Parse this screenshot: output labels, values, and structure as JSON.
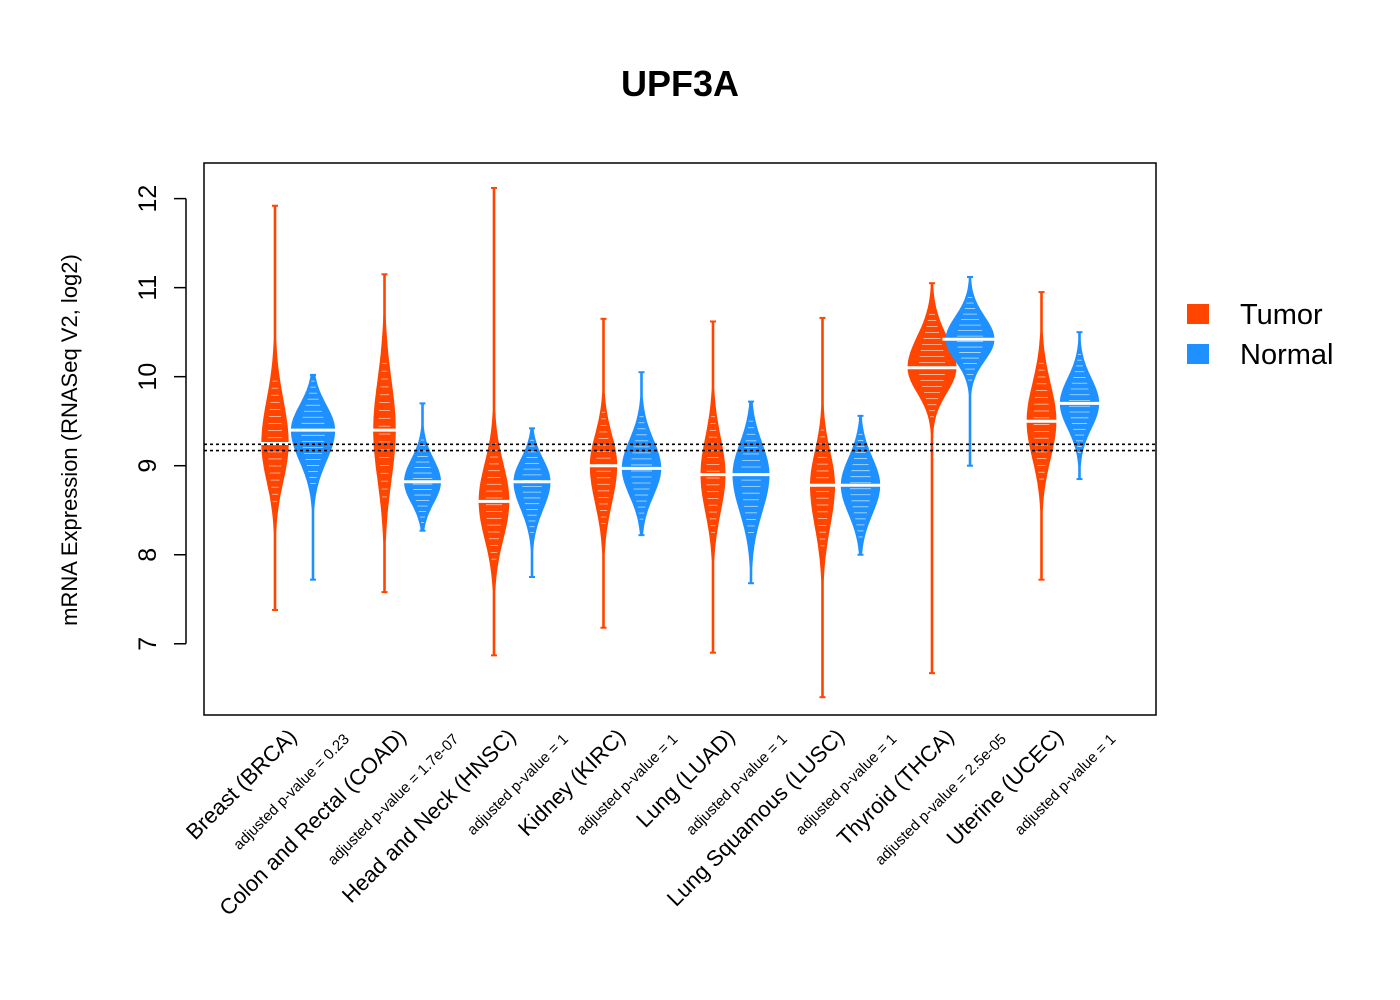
{
  "chart_data": {
    "type": "violin",
    "title": "UPF3A",
    "ylabel": "mRNA Expression (RNASeq V2, log2)",
    "xlabel": "",
    "ylim": [
      6.2,
      12.4
    ],
    "yticks": [
      "7",
      "8",
      "9",
      "10",
      "11",
      "12"
    ],
    "reference_lines": [
      9.17,
      9.24
    ],
    "legend": {
      "position": "right",
      "entries": [
        {
          "name": "Tumor",
          "color": "#ff4500"
        },
        {
          "name": "Normal",
          "color": "#1e90ff"
        }
      ]
    },
    "categories": [
      {
        "label": "Breast (BRCA)",
        "pvalue": "adjusted p-value = 0.23",
        "tumor": {
          "min": 7.38,
          "max": 11.92,
          "median": 9.25,
          "q1": 8.95,
          "q3": 9.6,
          "width": 0.55
        },
        "normal": {
          "min": 7.72,
          "max": 10.02,
          "median": 9.4,
          "q1": 9.15,
          "q3": 9.6,
          "width": 0.9
        }
      },
      {
        "label": "Colon and Rectal (COAD)",
        "pvalue": "adjusted p-value = 1.7e-07",
        "tumor": {
          "min": 7.58,
          "max": 11.15,
          "median": 9.4,
          "q1": 9.0,
          "q3": 9.8,
          "width": 0.45
        },
        "normal": {
          "min": 8.27,
          "max": 9.7,
          "median": 8.82,
          "q1": 8.65,
          "q3": 9.0,
          "width": 0.75
        }
      },
      {
        "label": "Head and Neck (HNSC)",
        "pvalue": "adjusted p-value = 1",
        "tumor": {
          "min": 6.87,
          "max": 12.12,
          "median": 8.6,
          "q1": 8.3,
          "q3": 8.9,
          "width": 0.62
        },
        "normal": {
          "min": 7.75,
          "max": 9.42,
          "median": 8.82,
          "q1": 8.6,
          "q3": 9.0,
          "width": 0.75
        }
      },
      {
        "label": "Kidney (KIRC)",
        "pvalue": "adjusted p-value = 1",
        "tumor": {
          "min": 7.18,
          "max": 10.65,
          "median": 9.0,
          "q1": 8.7,
          "q3": 9.25,
          "width": 0.55
        },
        "normal": {
          "min": 8.22,
          "max": 10.05,
          "median": 8.97,
          "q1": 8.75,
          "q3": 9.2,
          "width": 0.8
        }
      },
      {
        "label": "Lung (LUAD)",
        "pvalue": "adjusted p-value = 1",
        "tumor": {
          "min": 6.9,
          "max": 10.62,
          "median": 8.9,
          "q1": 8.6,
          "q3": 9.2,
          "width": 0.5
        },
        "normal": {
          "min": 7.68,
          "max": 9.72,
          "median": 8.9,
          "q1": 8.6,
          "q3": 9.15,
          "width": 0.75
        }
      },
      {
        "label": "Lung Squamous (LUSC)",
        "pvalue": "adjusted p-value = 1",
        "tumor": {
          "min": 6.4,
          "max": 10.66,
          "median": 8.78,
          "q1": 8.45,
          "q3": 9.05,
          "width": 0.5
        },
        "normal": {
          "min": 8.0,
          "max": 9.56,
          "median": 8.78,
          "q1": 8.55,
          "q3": 9.0,
          "width": 0.8
        }
      },
      {
        "label": "Thyroid (THCA)",
        "pvalue": "adjusted p-value = 2.5e-05",
        "tumor": {
          "min": 6.67,
          "max": 11.05,
          "median": 10.1,
          "q1": 9.9,
          "q3": 10.35,
          "width": 1.0
        },
        "normal": {
          "min": 9.0,
          "max": 11.12,
          "median": 10.42,
          "q1": 10.25,
          "q3": 10.6,
          "width": 1.0
        }
      },
      {
        "label": "Uterine (UCEC)",
        "pvalue": "adjusted p-value = 1",
        "tumor": {
          "min": 7.72,
          "max": 10.95,
          "median": 9.5,
          "q1": 9.2,
          "q3": 9.8,
          "width": 0.6
        },
        "normal": {
          "min": 8.85,
          "max": 10.5,
          "median": 9.7,
          "q1": 9.5,
          "q3": 9.9,
          "width": 0.8
        }
      }
    ]
  }
}
